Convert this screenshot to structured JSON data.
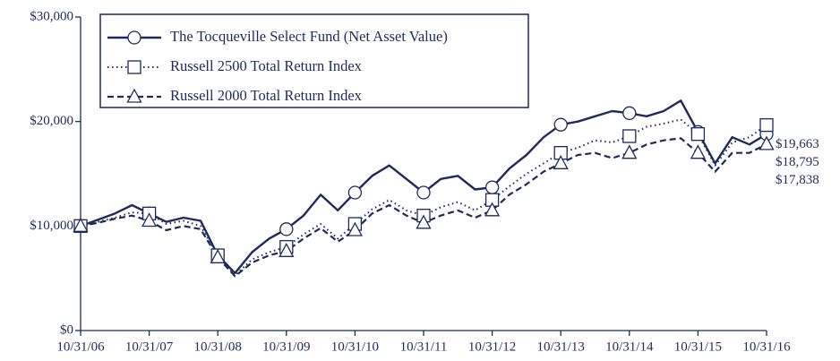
{
  "chart_data": {
    "type": "line",
    "categories": [
      "10/31/06",
      null,
      null,
      null,
      "10/31/07",
      null,
      null,
      null,
      "10/31/08",
      null,
      null,
      null,
      "10/31/09",
      null,
      null,
      null,
      "10/31/10",
      null,
      null,
      null,
      "10/31/11",
      null,
      null,
      null,
      "10/31/12",
      null,
      null,
      null,
      "10/31/13",
      null,
      null,
      null,
      "10/31/14",
      null,
      null,
      null,
      "10/31/15",
      null,
      null,
      null,
      "10/31/16"
    ],
    "ylim": [
      0,
      30000
    ],
    "yticks": [
      {
        "value": 0,
        "label": "$0"
      },
      {
        "value": 10000,
        "label": "$10,000"
      },
      {
        "value": 20000,
        "label": "$20,000"
      },
      {
        "value": 30000,
        "label": "$30,000"
      }
    ],
    "grid": false,
    "legend": "upper-left",
    "series": [
      {
        "name": "The Tocqueville Select Fund (Net Asset Value)",
        "color": "#1d2a5c",
        "dash": "solid",
        "marker": "circle",
        "values": [
          10000,
          10600,
          11200,
          12000,
          11200,
          10400,
          10800,
          10500,
          7200,
          5500,
          7500,
          8800,
          9700,
          11000,
          13000,
          11500,
          13200,
          14800,
          15800,
          14500,
          13200,
          14500,
          14800,
          13500,
          13700,
          15500,
          16800,
          18500,
          19700,
          20000,
          20500,
          21000,
          20800,
          20500,
          21000,
          22000,
          19000,
          16000,
          18500,
          17800,
          18795
        ],
        "value_labels": [
          null,
          null,
          null,
          null,
          null,
          null,
          null,
          null,
          null,
          null,
          null,
          null,
          null,
          null,
          null,
          null,
          null,
          null,
          null,
          null,
          null,
          null,
          null,
          null,
          null,
          null,
          null,
          null,
          null,
          null,
          null,
          null,
          null,
          null,
          null,
          null,
          null,
          null,
          null,
          null,
          "$18,795"
        ]
      },
      {
        "name": "Russell 2500 Total Return Index",
        "color": "#1d2a5c",
        "dash": "dotted",
        "marker": "square",
        "values": [
          10000,
          10400,
          10800,
          11300,
          11200,
          10200,
          10500,
          10000,
          7200,
          5300,
          6800,
          7500,
          8000,
          9200,
          10200,
          8800,
          10200,
          11600,
          12500,
          11500,
          11000,
          11800,
          12300,
          11500,
          12500,
          13800,
          15000,
          16000,
          17000,
          17500,
          18200,
          18000,
          18600,
          19500,
          19800,
          20200,
          18800,
          15800,
          18000,
          18500,
          19663
        ],
        "value_labels": [
          null,
          null,
          null,
          null,
          null,
          null,
          null,
          null,
          null,
          null,
          null,
          null,
          null,
          null,
          null,
          null,
          null,
          null,
          null,
          null,
          null,
          null,
          null,
          null,
          null,
          null,
          null,
          null,
          null,
          null,
          null,
          null,
          null,
          null,
          null,
          null,
          null,
          null,
          null,
          null,
          "$19,663"
        ]
      },
      {
        "name": "Russell 2000 Total Return Index",
        "color": "#1d2a5c",
        "dash": "dashed",
        "marker": "triangle",
        "values": [
          10000,
          10300,
          10700,
          11000,
          10500,
          9600,
          10000,
          9700,
          7000,
          5200,
          6500,
          7200,
          7600,
          8800,
          9800,
          8500,
          9600,
          11200,
          12000,
          11000,
          10300,
          11000,
          11500,
          10800,
          11500,
          13000,
          14000,
          15200,
          16000,
          16800,
          17000,
          16500,
          17000,
          17800,
          18200,
          18400,
          17000,
          15200,
          17000,
          17000,
          17838
        ],
        "value_labels": [
          null,
          null,
          null,
          null,
          null,
          null,
          null,
          null,
          null,
          null,
          null,
          null,
          null,
          null,
          null,
          null,
          null,
          null,
          null,
          null,
          null,
          null,
          null,
          null,
          null,
          null,
          null,
          null,
          null,
          null,
          null,
          null,
          null,
          null,
          null,
          null,
          null,
          null,
          null,
          null,
          "$17,838"
        ]
      }
    ]
  }
}
